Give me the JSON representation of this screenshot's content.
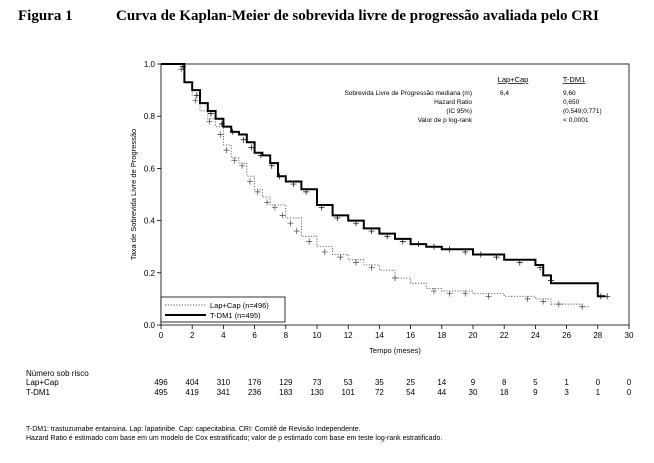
{
  "figure": {
    "label": "Figura 1",
    "title": "Curva de Kaplan-Meier de sobrevida livre de progressão avaliada pelo CRI"
  },
  "chart_data": {
    "type": "line",
    "subtype": "kaplan-meier step curve",
    "xlabel": "Tempo (meses)",
    "ylabel": "Taxa de Sobrevida Livre de Progressão",
    "xlim": [
      0,
      30
    ],
    "ylim": [
      0,
      1
    ],
    "x_ticks": [
      "0",
      "2",
      "4",
      "6",
      "8",
      "10",
      "12",
      "14",
      "16",
      "18",
      "20",
      "22",
      "24",
      "26",
      "28",
      "30"
    ],
    "y_ticks": [
      "0.0",
      "0.2",
      "0.4",
      "0.6",
      "0.8",
      "1.0"
    ],
    "grid": false,
    "legend_position": "bottom-left",
    "series": [
      {
        "name": "Lap+Cap (n=496)",
        "style": "dotted",
        "points": [
          [
            0,
            1.0
          ],
          [
            1.2,
            1.0
          ],
          [
            1.5,
            0.93
          ],
          [
            2.0,
            0.88
          ],
          [
            2.5,
            0.82
          ],
          [
            3.0,
            0.79
          ],
          [
            3.5,
            0.76
          ],
          [
            4.0,
            0.69
          ],
          [
            4.5,
            0.64
          ],
          [
            5.0,
            0.62
          ],
          [
            5.5,
            0.57
          ],
          [
            6.0,
            0.52
          ],
          [
            6.5,
            0.49
          ],
          [
            7.0,
            0.46
          ],
          [
            8.0,
            0.41
          ],
          [
            9.0,
            0.34
          ],
          [
            10.0,
            0.3
          ],
          [
            11.0,
            0.27
          ],
          [
            12.0,
            0.25
          ],
          [
            13.0,
            0.23
          ],
          [
            14.0,
            0.21
          ],
          [
            15.0,
            0.18
          ],
          [
            16.0,
            0.16
          ],
          [
            17.0,
            0.14
          ],
          [
            18.0,
            0.13
          ],
          [
            20.0,
            0.12
          ],
          [
            22.0,
            0.11
          ],
          [
            24.0,
            0.1
          ],
          [
            25.0,
            0.08
          ],
          [
            26.0,
            0.08
          ],
          [
            27.0,
            0.07
          ],
          [
            27.5,
            0.07
          ]
        ],
        "censors": [
          [
            1.3,
            0.98
          ],
          [
            2.2,
            0.86
          ],
          [
            3.1,
            0.78
          ],
          [
            3.8,
            0.73
          ],
          [
            4.2,
            0.67
          ],
          [
            4.7,
            0.63
          ],
          [
            5.2,
            0.61
          ],
          [
            5.7,
            0.55
          ],
          [
            6.2,
            0.51
          ],
          [
            6.8,
            0.47
          ],
          [
            7.3,
            0.45
          ],
          [
            7.8,
            0.42
          ],
          [
            8.3,
            0.39
          ],
          [
            8.7,
            0.36
          ],
          [
            9.5,
            0.32
          ],
          [
            10.5,
            0.28
          ],
          [
            11.5,
            0.26
          ],
          [
            12.5,
            0.24
          ],
          [
            13.5,
            0.22
          ],
          [
            15.0,
            0.18
          ],
          [
            17.5,
            0.13
          ],
          [
            18.5,
            0.12
          ],
          [
            19.5,
            0.12
          ],
          [
            21.0,
            0.11
          ],
          [
            23.5,
            0.1
          ],
          [
            24.5,
            0.09
          ],
          [
            25.5,
            0.08
          ],
          [
            27.0,
            0.07
          ]
        ]
      },
      {
        "name": "T-DM1 (n=495)",
        "style": "solid",
        "points": [
          [
            0,
            1.0
          ],
          [
            1.2,
            1.0
          ],
          [
            1.5,
            0.93
          ],
          [
            2.0,
            0.9
          ],
          [
            2.5,
            0.85
          ],
          [
            3.0,
            0.82
          ],
          [
            3.5,
            0.79
          ],
          [
            4.0,
            0.76
          ],
          [
            4.5,
            0.74
          ],
          [
            5.0,
            0.73
          ],
          [
            5.5,
            0.7
          ],
          [
            6.0,
            0.66
          ],
          [
            6.5,
            0.65
          ],
          [
            7.0,
            0.62
          ],
          [
            7.5,
            0.57
          ],
          [
            8.0,
            0.55
          ],
          [
            9.0,
            0.52
          ],
          [
            10.0,
            0.46
          ],
          [
            11.0,
            0.42
          ],
          [
            12.0,
            0.4
          ],
          [
            13.0,
            0.37
          ],
          [
            14.0,
            0.35
          ],
          [
            15.0,
            0.33
          ],
          [
            16.0,
            0.31
          ],
          [
            17.0,
            0.3
          ],
          [
            18.0,
            0.29
          ],
          [
            20.0,
            0.27
          ],
          [
            22.0,
            0.25
          ],
          [
            24.0,
            0.23
          ],
          [
            24.5,
            0.19
          ],
          [
            25.0,
            0.16
          ],
          [
            26.0,
            0.16
          ],
          [
            27.0,
            0.16
          ],
          [
            28.0,
            0.11
          ],
          [
            28.5,
            0.11
          ]
        ],
        "censors": [
          [
            1.4,
            0.99
          ],
          [
            2.3,
            0.88
          ],
          [
            3.2,
            0.81
          ],
          [
            3.9,
            0.77
          ],
          [
            4.6,
            0.74
          ],
          [
            5.3,
            0.71
          ],
          [
            5.8,
            0.68
          ],
          [
            6.4,
            0.65
          ],
          [
            7.1,
            0.61
          ],
          [
            7.6,
            0.57
          ],
          [
            8.5,
            0.54
          ],
          [
            9.3,
            0.51
          ],
          [
            10.3,
            0.45
          ],
          [
            11.3,
            0.41
          ],
          [
            12.5,
            0.39
          ],
          [
            13.5,
            0.36
          ],
          [
            14.5,
            0.34
          ],
          [
            15.5,
            0.32
          ],
          [
            16.5,
            0.31
          ],
          [
            17.5,
            0.3
          ],
          [
            18.5,
            0.29
          ],
          [
            19.5,
            0.28
          ],
          [
            20.5,
            0.27
          ],
          [
            21.5,
            0.26
          ],
          [
            23.0,
            0.24
          ],
          [
            24.3,
            0.22
          ],
          [
            25.0,
            0.17
          ],
          [
            28.2,
            0.11
          ],
          [
            28.6,
            0.11
          ]
        ]
      }
    ],
    "stats_table": {
      "col_headers": [
        "Lap+Cap",
        "T-DM1"
      ],
      "rows": [
        {
          "label": "Sobrevida Livre de Progressão mediana (m)",
          "lap": "6,4",
          "tdm1": "9,60"
        },
        {
          "label": "Hazard Ratio",
          "lap": "",
          "tdm1": "0,650"
        },
        {
          "label": "(IC 95%)",
          "lap": "",
          "tdm1": "(0,549;0,771)"
        },
        {
          "label": "Valor de p log-rank",
          "lap": "",
          "tdm1": "< 0,0001"
        }
      ]
    }
  },
  "risk_table": {
    "title": "Número sob risco",
    "times": [
      0,
      2,
      4,
      6,
      8,
      10,
      12,
      14,
      16,
      18,
      20,
      22,
      24,
      26,
      28,
      30
    ],
    "rows": [
      {
        "label": "Lap+Cap",
        "values": [
          "496",
          "404",
          "310",
          "176",
          "129",
          "73",
          "53",
          "35",
          "25",
          "14",
          "9",
          "8",
          "5",
          "1",
          "0",
          "0"
        ]
      },
      {
        "label": "T-DM1",
        "values": [
          "495",
          "419",
          "341",
          "236",
          "183",
          "130",
          "101",
          "72",
          "54",
          "44",
          "30",
          "18",
          "9",
          "3",
          "1",
          "0"
        ]
      }
    ]
  },
  "footnotes": [
    "T-DM1: trastuzumabe entansina. Lap: lapatinibe. Cap: capecitabina. CRI: Comitê de Revisão Independente.",
    "Hazard Ratio é estimado com base em um modelo de Cox estratificado; valor de p estimado com base em teste log-rank estratificado."
  ]
}
